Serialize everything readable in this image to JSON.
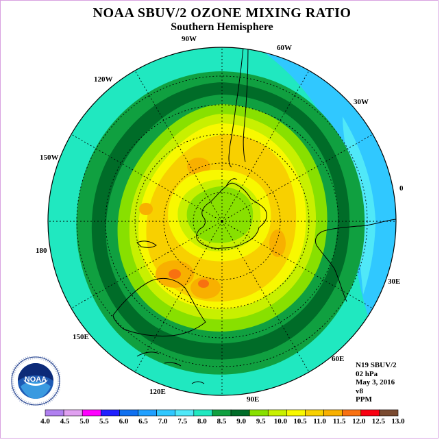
{
  "title": "NOAA SBUV/2 OZONE MIXING RATIO",
  "subtitle": "Southern Hemisphere",
  "longitude_labels": [
    "90W",
    "60W",
    "30W",
    "0",
    "30E",
    "60E",
    "90E",
    "120E",
    "150E",
    "180",
    "150W",
    "120W"
  ],
  "info": {
    "satellite": "N19 SBUV/2",
    "level": "02 hPa",
    "date": "May 3, 2016",
    "version": "v8",
    "units": "PPM"
  },
  "logo_text": "NOAA",
  "colorbar": {
    "ticks": [
      "4.0",
      "4.5",
      "5.0",
      "5.5",
      "6.0",
      "6.5",
      "7.0",
      "7.5",
      "8.0",
      "8.5",
      "9.0",
      "9.5",
      "10.0",
      "10.5",
      "11.0",
      "11.5",
      "12.0",
      "12.5",
      "13.0"
    ],
    "colors": [
      "#b080f0",
      "#e0a0f0",
      "#ff00ff",
      "#2020ff",
      "#1070f0",
      "#20a0ff",
      "#30c8ff",
      "#50e8f8",
      "#20e8c0",
      "#10a040",
      "#006c28",
      "#88e000",
      "#c8f000",
      "#f8f800",
      "#f8d000",
      "#f8b000",
      "#f87010",
      "#f80010",
      "#7a4a30"
    ]
  }
}
